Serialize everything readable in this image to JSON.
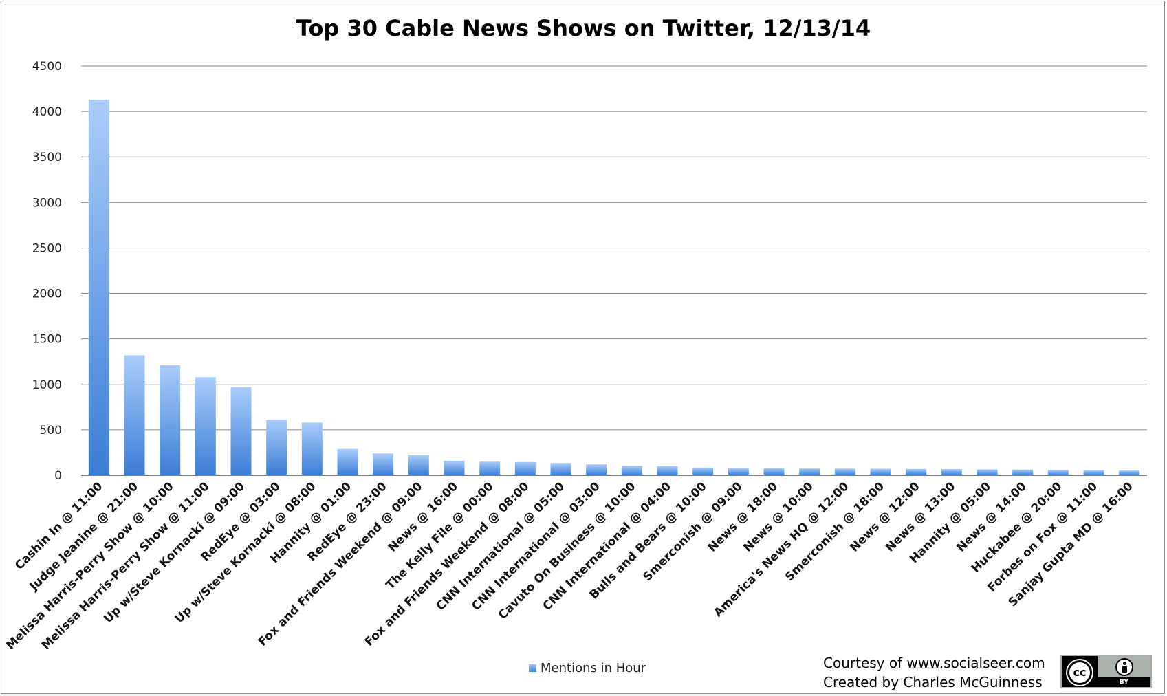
{
  "chart_data": {
    "type": "bar",
    "title": "Top 30 Cable News Shows on Twitter, 12/13/14",
    "xlabel": "",
    "ylabel": "",
    "ylim": [
      0,
      4500
    ],
    "yticks": [
      0,
      500,
      1000,
      1500,
      2000,
      2500,
      3000,
      3500,
      4000,
      4500
    ],
    "grid": true,
    "legend_position": "bottom",
    "categories": [
      "Cashin In @ 11:00",
      "Judge Jeanine @ 21:00",
      "Melissa Harris-Perry Show @ 10:00",
      "Melissa Harris-Perry Show @ 11:00",
      "Up w/Steve Kornacki @ 09:00",
      "RedEye @ 03:00",
      "Up w/Steve Kornacki @ 08:00",
      "Hannity @ 01:00",
      "RedEye @ 23:00",
      "Fox and Friends Weekend @ 09:00",
      "News @ 16:00",
      "The Kelly File @ 00:00",
      "Fox and Friends Weekend @ 08:00",
      "CNN International @ 05:00",
      "CNN International @ 03:00",
      "Cavuto On Business @ 10:00",
      "CNN International @ 04:00",
      "Bulls and Bears @ 10:00",
      "Smerconish @ 09:00",
      "News @ 18:00",
      "News @ 10:00",
      "America's News HQ @ 12:00",
      "Smerconish @ 18:00",
      "News @ 12:00",
      "News @ 13:00",
      "Hannity @ 05:00",
      "News @ 14:00",
      "Huckabee @ 20:00",
      "Forbes on Fox @ 11:00",
      "Sanjay Gupta MD @ 16:00"
    ],
    "series": [
      {
        "name": "Mentions in Hour",
        "values": [
          4130,
          1320,
          1210,
          1080,
          970,
          610,
          580,
          290,
          240,
          220,
          160,
          150,
          145,
          135,
          120,
          105,
          100,
          85,
          80,
          78,
          75,
          73,
          72,
          70,
          68,
          65,
          62,
          58,
          55,
          52
        ]
      }
    ],
    "colors": {
      "bar_top": "#a9cdfb",
      "bar_bottom": "#3b7dd5",
      "grid": "#8a8a8a"
    }
  },
  "credits": {
    "line1": "Courtesy of www.socialseer.com",
    "line2": "Created by Charles McGuinness"
  },
  "badge": {
    "cc": "cc",
    "by": "BY"
  }
}
